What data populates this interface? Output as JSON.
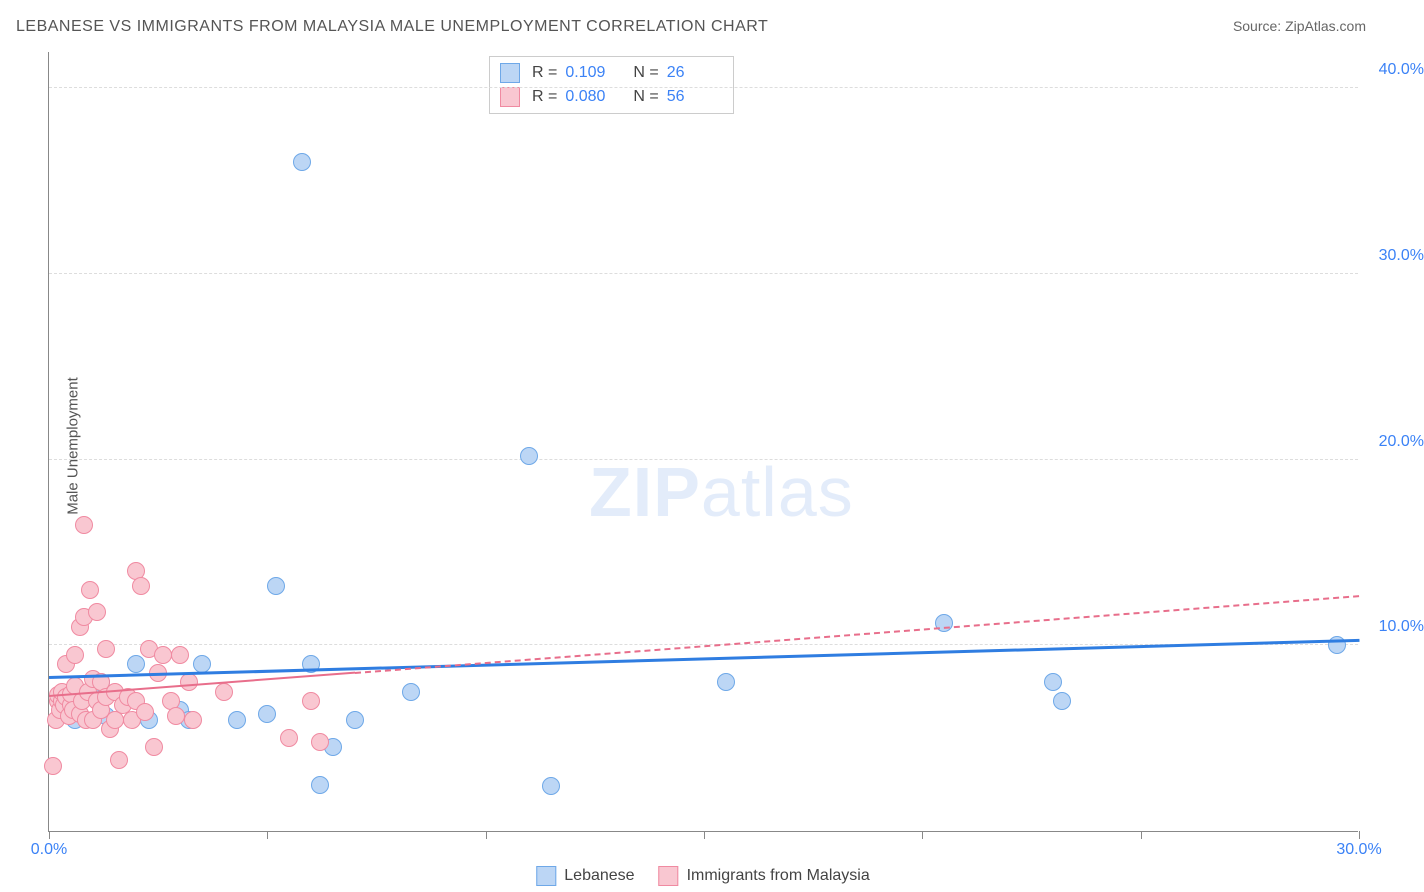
{
  "title": "LEBANESE VS IMMIGRANTS FROM MALAYSIA MALE UNEMPLOYMENT CORRELATION CHART",
  "source": "Source: ZipAtlas.com",
  "ylabel": "Male Unemployment",
  "watermark_bold": "ZIP",
  "watermark_rest": "atlas",
  "chart": {
    "type": "scatter",
    "xlim": [
      0,
      30
    ],
    "ylim": [
      0,
      42
    ],
    "x_ticks": [
      0,
      5,
      10,
      15,
      20,
      25,
      30
    ],
    "x_tick_labels": {
      "0": "0.0%",
      "30": "30.0%"
    },
    "y_grid": [
      10,
      20,
      30,
      40
    ],
    "y_tick_labels": {
      "10": "10.0%",
      "20": "20.0%",
      "30": "30.0%",
      "40": "40.0%"
    },
    "background_color": "#ffffff",
    "grid_color": "#dddddd",
    "axis_color": "#888888",
    "series": [
      {
        "name": "Lebanese",
        "fill_color": "#bcd6f5",
        "stroke_color": "#6ea8e8",
        "marker_radius": 9,
        "trend": {
          "x1": 0,
          "y1": 8.2,
          "x2": 30,
          "y2": 10.2,
          "color": "#2f7de1",
          "width": 3,
          "dash": false,
          "solid_until_x": 30
        },
        "points": [
          [
            0.4,
            7.0
          ],
          [
            0.6,
            6.0
          ],
          [
            1.0,
            7.2
          ],
          [
            1.2,
            8.0
          ],
          [
            1.3,
            6.2
          ],
          [
            2.0,
            9.0
          ],
          [
            2.3,
            6.0
          ],
          [
            3.0,
            6.5
          ],
          [
            3.2,
            6.0
          ],
          [
            3.5,
            9.0
          ],
          [
            4.3,
            6.0
          ],
          [
            5.0,
            6.3
          ],
          [
            5.2,
            13.2
          ],
          [
            5.8,
            36.0
          ],
          [
            6.0,
            9.0
          ],
          [
            6.2,
            2.5
          ],
          [
            6.5,
            4.5
          ],
          [
            7.0,
            6.0
          ],
          [
            8.3,
            7.5
          ],
          [
            11.0,
            20.2
          ],
          [
            11.5,
            2.4
          ],
          [
            15.5,
            8.0
          ],
          [
            20.5,
            11.2
          ],
          [
            23.0,
            8.0
          ],
          [
            23.2,
            7.0
          ],
          [
            29.5,
            10.0
          ]
        ]
      },
      {
        "name": "Immigrants from Malaysia",
        "fill_color": "#f9c7d1",
        "stroke_color": "#f08aa1",
        "marker_radius": 9,
        "trend": {
          "x1": 0,
          "y1": 7.2,
          "x2": 30,
          "y2": 12.6,
          "color": "#e86e8b",
          "width": 2,
          "dash": true,
          "solid_until_x": 7
        },
        "points": [
          [
            0.1,
            3.5
          ],
          [
            0.15,
            6.0
          ],
          [
            0.2,
            7.0
          ],
          [
            0.2,
            7.3
          ],
          [
            0.25,
            6.5
          ],
          [
            0.3,
            7.0
          ],
          [
            0.3,
            7.5
          ],
          [
            0.35,
            6.8
          ],
          [
            0.4,
            7.2
          ],
          [
            0.4,
            9.0
          ],
          [
            0.45,
            6.2
          ],
          [
            0.5,
            6.8
          ],
          [
            0.5,
            7.4
          ],
          [
            0.55,
            6.5
          ],
          [
            0.6,
            9.5
          ],
          [
            0.6,
            7.8
          ],
          [
            0.7,
            6.3
          ],
          [
            0.7,
            11.0
          ],
          [
            0.75,
            7.0
          ],
          [
            0.8,
            11.5
          ],
          [
            0.8,
            16.5
          ],
          [
            0.85,
            6.0
          ],
          [
            0.9,
            7.5
          ],
          [
            0.95,
            13.0
          ],
          [
            1.0,
            8.2
          ],
          [
            1.0,
            6.0
          ],
          [
            1.1,
            11.8
          ],
          [
            1.1,
            7.0
          ],
          [
            1.2,
            6.5
          ],
          [
            1.2,
            8.0
          ],
          [
            1.3,
            7.2
          ],
          [
            1.3,
            9.8
          ],
          [
            1.4,
            5.5
          ],
          [
            1.5,
            6.0
          ],
          [
            1.5,
            7.5
          ],
          [
            1.6,
            3.8
          ],
          [
            1.7,
            6.8
          ],
          [
            1.8,
            7.2
          ],
          [
            1.9,
            6.0
          ],
          [
            2.0,
            14.0
          ],
          [
            2.0,
            7.0
          ],
          [
            2.1,
            13.2
          ],
          [
            2.2,
            6.4
          ],
          [
            2.3,
            9.8
          ],
          [
            2.4,
            4.5
          ],
          [
            2.5,
            8.5
          ],
          [
            2.6,
            9.5
          ],
          [
            2.8,
            7.0
          ],
          [
            2.9,
            6.2
          ],
          [
            3.0,
            9.5
          ],
          [
            3.2,
            8.0
          ],
          [
            3.3,
            6.0
          ],
          [
            4.0,
            7.5
          ],
          [
            5.5,
            5.0
          ],
          [
            6.0,
            7.0
          ],
          [
            6.2,
            4.8
          ]
        ]
      }
    ]
  },
  "stat_legend": [
    {
      "swatch_fill": "#bcd6f5",
      "swatch_stroke": "#6ea8e8",
      "r_label": "R =",
      "r_value": "0.109",
      "n_label": "N =",
      "n_value": "26"
    },
    {
      "swatch_fill": "#f9c7d1",
      "swatch_stroke": "#f08aa1",
      "r_label": "R =",
      "r_value": "0.080",
      "n_label": "N =",
      "n_value": "56"
    }
  ],
  "bottom_legend": [
    {
      "swatch_fill": "#bcd6f5",
      "swatch_stroke": "#6ea8e8",
      "label": "Lebanese"
    },
    {
      "swatch_fill": "#f9c7d1",
      "swatch_stroke": "#f08aa1",
      "label": "Immigrants from Malaysia"
    }
  ]
}
